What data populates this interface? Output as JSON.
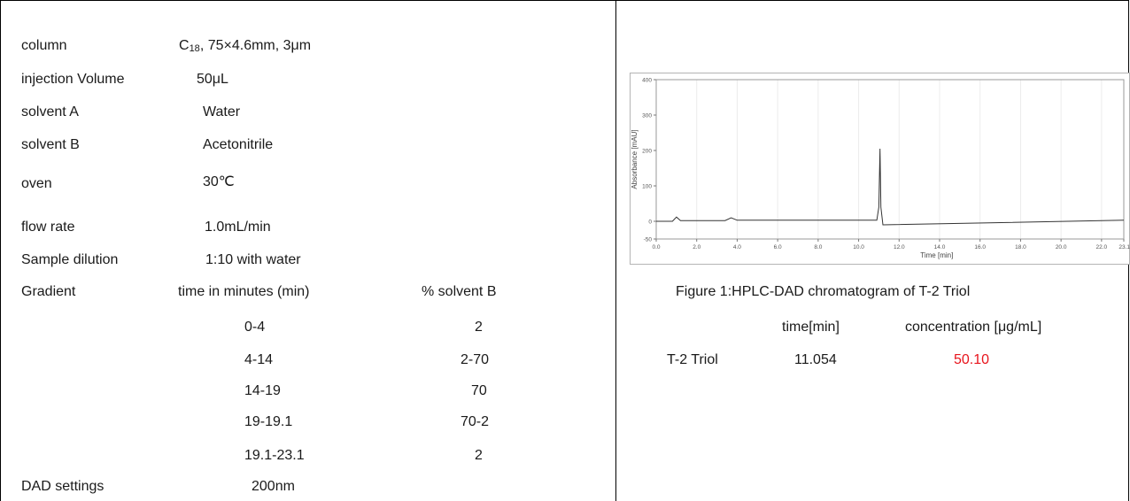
{
  "params": {
    "column": {
      "label": "column",
      "value_prefix": "C",
      "value_sub": "18",
      "value_rest": ", 75×4.6mm, 3μm"
    },
    "injection": {
      "label": "injection Volume",
      "value": "50μL"
    },
    "solvent_a": {
      "label": "solvent A",
      "value": "Water"
    },
    "solvent_b": {
      "label": "solvent B",
      "value": "Acetonitrile"
    },
    "oven": {
      "label": "oven",
      "value": "30℃"
    },
    "flow": {
      "label": "flow rate",
      "value": "1.0mL/min"
    },
    "dilution": {
      "label": "Sample dilution",
      "value": "1:10 with water"
    },
    "gradient": {
      "label": "Gradient",
      "col_time": "time in minutes (min)",
      "col_b": "% solvent B",
      "rows": [
        {
          "time": "0-4",
          "b": "2"
        },
        {
          "time": "4-14",
          "b": "2-70"
        },
        {
          "time": "14-19",
          "b": "70"
        },
        {
          "time": "19-19.1",
          "b": "70-2"
        },
        {
          "time": "19.1-23.1",
          "b": "2"
        }
      ]
    },
    "dad": {
      "label": "DAD settings",
      "value": "200nm"
    }
  },
  "figure": {
    "caption": "Figure 1:HPLC-DAD chromatogram of T-2 Triol"
  },
  "results": {
    "col_time": "time[min]",
    "col_conc": "concentration [μg/mL]",
    "rows": [
      {
        "name": "T-2 Triol",
        "time": "11.054",
        "conc": "50.10"
      }
    ],
    "highlight_color": "#e8141c"
  },
  "chart_data": {
    "type": "line",
    "xlabel": "Time [min]",
    "ylabel": "Absorbance [mAU]",
    "xlim": [
      0.0,
      23.1
    ],
    "ylim": [
      -50,
      400
    ],
    "x_ticks": [
      "0.0",
      "2.0",
      "4.0",
      "6.0",
      "8.0",
      "10.0",
      "12.0",
      "14.0",
      "16.0",
      "18.0",
      "20.0",
      "22.0",
      "23.1"
    ],
    "y_ticks": [
      "400",
      "300",
      "200",
      "100",
      "0",
      "-50"
    ],
    "series": [
      {
        "x": [
          0.0,
          0.8,
          1.0,
          1.2,
          3.4,
          3.7,
          4.0,
          10.9,
          11.0,
          11.054,
          11.1,
          11.2,
          23.1
        ],
        "y": [
          0,
          0,
          12,
          2,
          2,
          10,
          3,
          3,
          40,
          205,
          40,
          -10,
          3
        ],
        "color": "#333333"
      }
    ]
  }
}
